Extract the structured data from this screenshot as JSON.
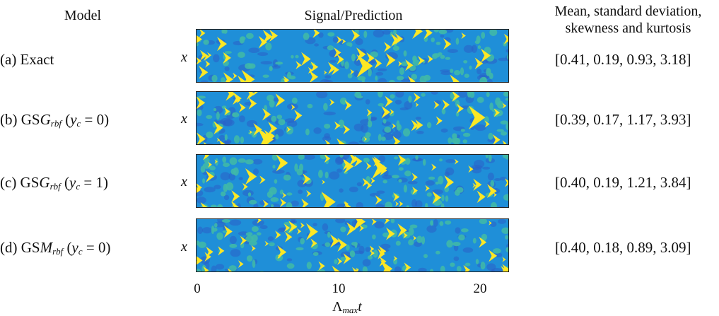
{
  "headers": {
    "model": "Model",
    "signal": "Signal/Prediction",
    "stats_line1": "Mean, standard deviation,",
    "stats_line2": "skewness and kurtosis"
  },
  "rows": [
    {
      "tag": "(a) Exact",
      "stats": "[0.41, 0.19, 0.93, 3.18]",
      "seed": 11
    },
    {
      "tag": "(b) GS",
      "sym": "G",
      "sub": "rbf",
      "cond": "(y_c = 0)",
      "stats": "[0.39, 0.17, 1.17, 3.93]",
      "seed": 27
    },
    {
      "tag": "(c) GS",
      "sym": "G",
      "sub": "rbf",
      "cond": "(y_c = 1)",
      "stats": "[0.40, 0.19, 1.21, 3.84]",
      "seed": 53
    },
    {
      "tag": "(d) GS",
      "sym": "M",
      "sub": "rbf",
      "cond": "(y_c = 0)",
      "stats": "[0.40, 0.18, 0.89, 3.09]",
      "seed": 91
    }
  ],
  "y_label": "x",
  "x_axis": {
    "ticks": [
      "0",
      "10",
      "20"
    ],
    "label_main": "Λ",
    "label_sub": "max",
    "label_var": "t"
  },
  "colors": {
    "background": "#1f8fd8",
    "mid": "#3fb8a8",
    "high": "#fde725",
    "low": "#2a60c8"
  }
}
